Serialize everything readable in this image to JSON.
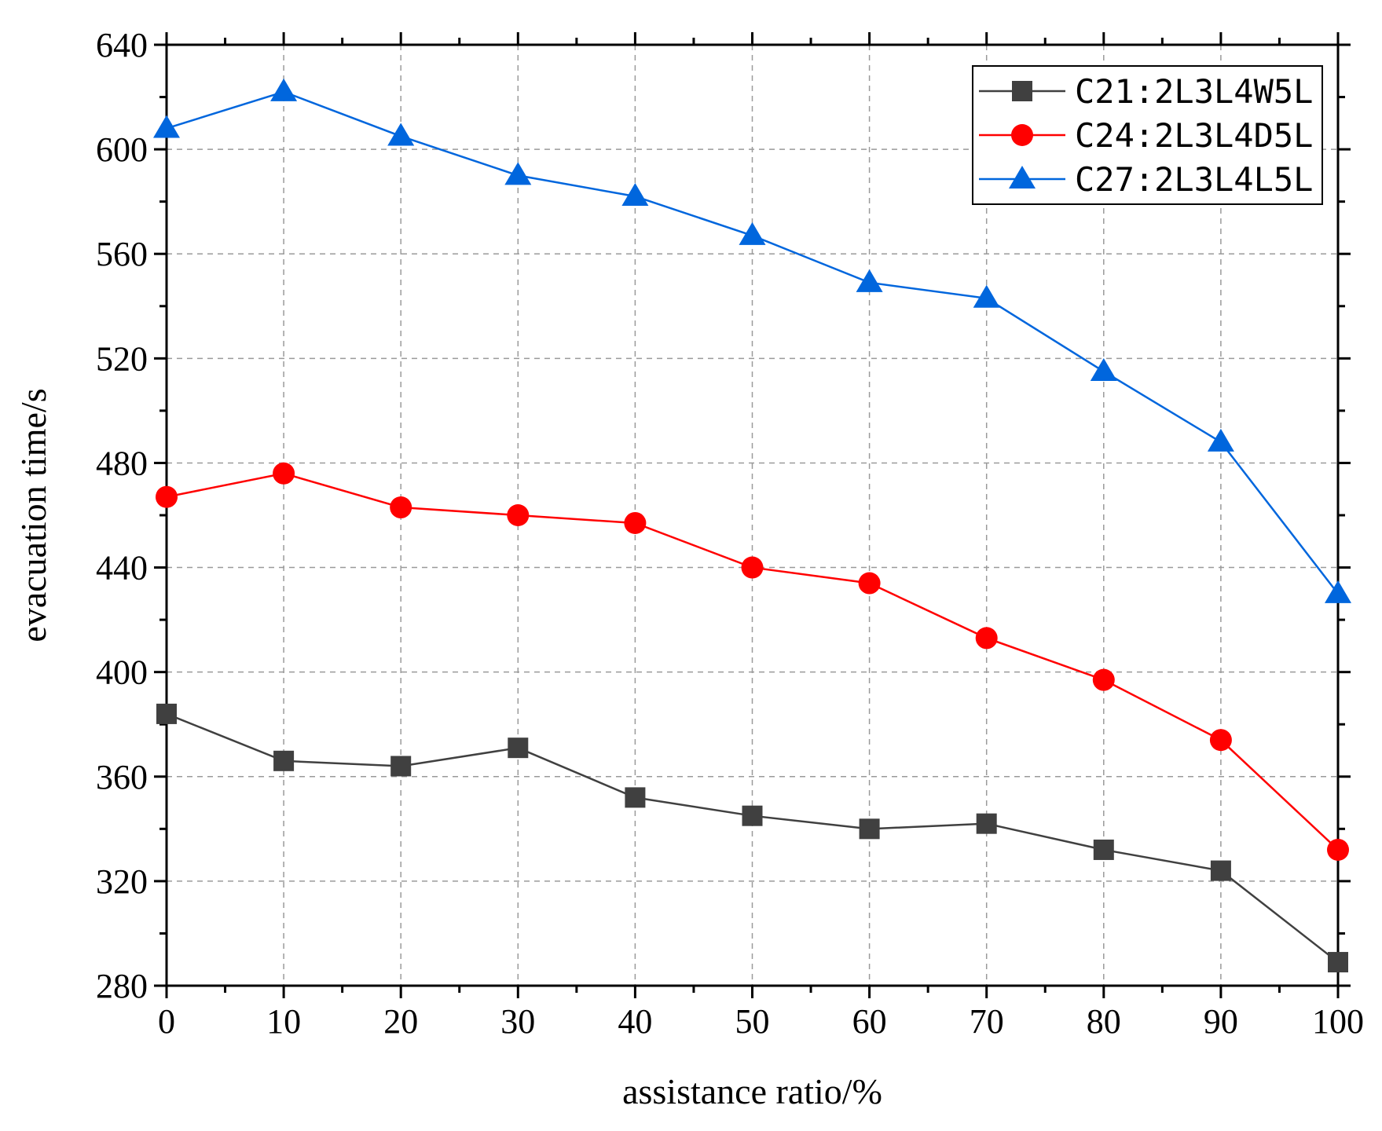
{
  "chart_data": {
    "type": "line",
    "title": "",
    "xlabel": "assistance ratio/%",
    "ylabel": "evacuation time/s",
    "x": [
      0,
      10,
      20,
      30,
      40,
      50,
      60,
      70,
      80,
      90,
      100
    ],
    "xlim": [
      0,
      100
    ],
    "ylim": [
      280,
      640
    ],
    "xticks": [
      0,
      10,
      20,
      30,
      40,
      50,
      60,
      70,
      80,
      90,
      100
    ],
    "yticks": [
      280,
      320,
      360,
      400,
      440,
      480,
      520,
      560,
      600,
      640
    ],
    "grid": true,
    "legend_position": "top-right",
    "series": [
      {
        "name": "C21:2L3L4W5L",
        "color": "#404040",
        "marker": "square",
        "values": [
          384,
          366,
          364,
          371,
          352,
          345,
          340,
          342,
          332,
          324,
          289
        ]
      },
      {
        "name": "C24:2L3L4D5L",
        "color": "#ff0000",
        "marker": "circle",
        "values": [
          467,
          476,
          463,
          460,
          457,
          440,
          434,
          413,
          397,
          374,
          332
        ]
      },
      {
        "name": "C27:2L3L4L5L",
        "color": "#0066dd",
        "marker": "triangle",
        "values": [
          608,
          622,
          605,
          590,
          582,
          567,
          549,
          543,
          515,
          488,
          430
        ]
      }
    ]
  }
}
